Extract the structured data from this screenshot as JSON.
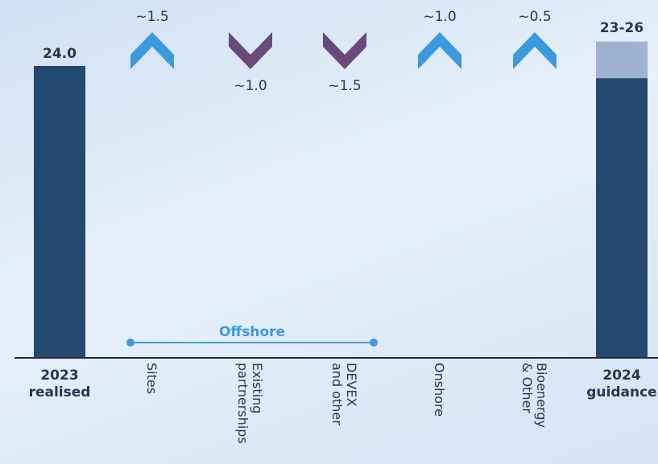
{
  "chart_data": {
    "type": "bar",
    "variant": "waterfall",
    "categories": [
      {
        "lines": [
          "2023",
          "realised"
        ],
        "bold": true
      },
      {
        "lines": [
          "Sites"
        ],
        "bold": false
      },
      {
        "lines": [
          "Existing",
          "partnerships"
        ],
        "bold": false
      },
      {
        "lines": [
          "DEVEX",
          "and other"
        ],
        "bold": false
      },
      {
        "lines": [
          "Onshore"
        ],
        "bold": false
      },
      {
        "lines": [
          "Bioenergy",
          "& Other"
        ],
        "bold": false
      },
      {
        "lines": [
          "2024",
          "guidance"
        ],
        "bold": true
      }
    ],
    "total_start": {
      "value": 24.0,
      "label": "24.0"
    },
    "changes": [
      {
        "direction": "up",
        "value": 1.5,
        "label": "~1.5"
      },
      {
        "direction": "down",
        "value": 1.0,
        "label": "~1.0"
      },
      {
        "direction": "down",
        "value": 1.5,
        "label": "~1.5"
      },
      {
        "direction": "up",
        "value": 1.0,
        "label": "~1.0"
      },
      {
        "direction": "up",
        "value": 0.5,
        "label": "~0.5"
      }
    ],
    "total_end": {
      "range": [
        23,
        26
      ],
      "label": "23-26"
    },
    "group": {
      "label": "Offshore",
      "from_category": 1,
      "to_category": 3
    },
    "ylim": [
      0,
      26
    ],
    "colors": {
      "bar": "#234a6e",
      "range": "#9fb3d0",
      "up": "#3d99de",
      "down": "#6a4a7a",
      "group": "#3d99de",
      "axis": "#1f2a44"
    }
  }
}
